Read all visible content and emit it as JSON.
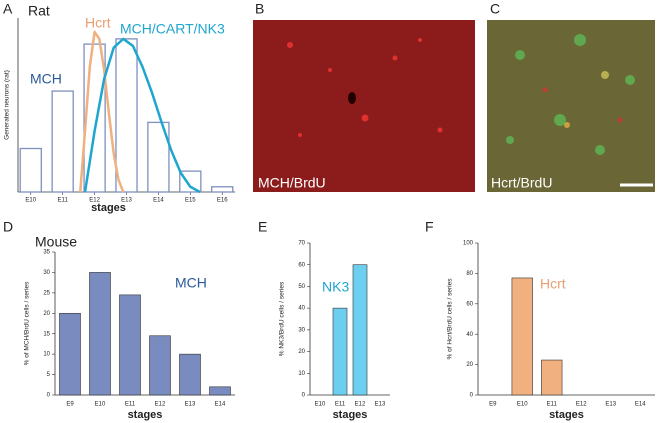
{
  "panels": {
    "letters": [
      "A",
      "B",
      "C",
      "D",
      "E",
      "F"
    ]
  },
  "images": [
    {
      "caption": "MCH/BrdU"
    },
    {
      "caption": "Hcrt/BrdU"
    }
  ],
  "chart_data": [
    {
      "type": "bar",
      "title": "Rat",
      "ylabel": "Generated neurons (rat)",
      "xlabel": "stages",
      "x": [
        10,
        11,
        12,
        13,
        14,
        15,
        16
      ],
      "xlim": [
        9.6,
        16.4
      ],
      "xticks": [
        {
          "value": 10,
          "label": "E10"
        },
        {
          "value": 11,
          "label": "E11"
        },
        {
          "value": 12,
          "label": "E12"
        },
        {
          "value": 13,
          "label": "E13"
        },
        {
          "value": 14,
          "label": "E14"
        },
        {
          "value": 15,
          "label": "E15"
        },
        {
          "value": 16,
          "label": "E16"
        }
      ],
      "ylim": [
        0,
        100
      ],
      "series": [
        {
          "name": "MCH",
          "color": "#7f8fbf",
          "values": [
            25,
            58,
            85,
            88,
            40,
            12,
            3
          ]
        },
        {
          "name": "Hcrt",
          "color": "#f0b07f",
          "type": "line",
          "x": [
            11.55,
            11.7,
            11.85,
            12.0,
            12.15,
            12.3,
            12.45,
            12.6,
            12.75,
            12.9
          ],
          "values": [
            0,
            35,
            72,
            92,
            88,
            70,
            45,
            22,
            7,
            0
          ]
        },
        {
          "name": "MCH/CART/NK3",
          "color": "#1fa6cf",
          "type": "line",
          "x": [
            11.7,
            12.0,
            12.3,
            12.6,
            12.9,
            13.2,
            13.5,
            13.8,
            14.1,
            14.4,
            14.7,
            15.0,
            15.3
          ],
          "values": [
            0,
            35,
            65,
            83,
            88,
            84,
            72,
            57,
            40,
            24,
            11,
            3,
            0
          ]
        }
      ]
    },
    {
      "type": "bar",
      "title": "Mouse",
      "ylabel": "% of MCH/BrdU cells / series",
      "xlabel": "stages",
      "categories": [
        "E9",
        "E10",
        "E11",
        "E12",
        "E13",
        "E14"
      ],
      "ylim": [
        0,
        35
      ],
      "yticks": [
        0,
        5,
        10,
        15,
        20,
        25,
        30,
        35
      ],
      "series": [
        {
          "name": "MCH",
          "color": "#7a8bbf",
          "values": [
            20,
            30,
            24.5,
            14.5,
            10,
            2
          ]
        }
      ]
    },
    {
      "type": "bar",
      "ylabel": "% NK3/BrdU cells / series",
      "xlabel": "stages",
      "categories": [
        "E10",
        "E11",
        "E12",
        "E13"
      ],
      "ylim": [
        0,
        70
      ],
      "yticks": [
        0,
        10,
        20,
        30,
        40,
        50,
        60,
        70
      ],
      "series": [
        {
          "name": "NK3",
          "color": "#6dcff0",
          "values": [
            0,
            40,
            60,
            0
          ]
        }
      ]
    },
    {
      "type": "bar",
      "ylabel": "% of Hcrt/BrdU cells / series",
      "xlabel": "stages",
      "categories": [
        "E9",
        "E10",
        "E11",
        "E12",
        "E13",
        "E14"
      ],
      "ylim": [
        0,
        100
      ],
      "yticks": [
        0,
        20,
        40,
        60,
        80,
        100
      ],
      "series": [
        {
          "name": "Hcrt",
          "color": "#f0b07f",
          "values": [
            0,
            77,
            23,
            0,
            0,
            0
          ]
        }
      ]
    }
  ]
}
